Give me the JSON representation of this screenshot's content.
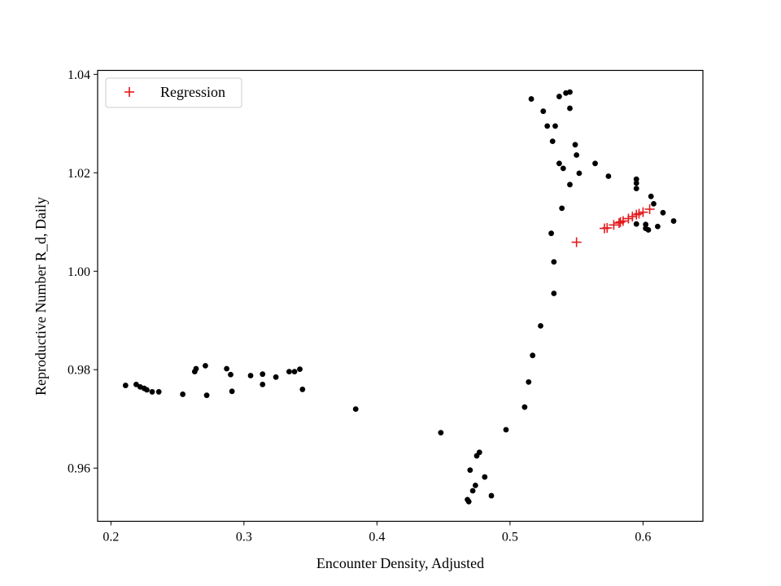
{
  "chart_data": {
    "type": "scatter",
    "title": "",
    "xlabel": "Encounter Density, Adjusted",
    "ylabel": "Reproductive Number R_d, Daily",
    "xlim": [
      0.19,
      0.645
    ],
    "ylim": [
      0.9492,
      1.0408
    ],
    "x_ticks": [
      0.2,
      0.3,
      0.4,
      0.5,
      0.6
    ],
    "x_tick_labels": [
      "0.2",
      "0.3",
      "0.4",
      "0.5",
      "0.6"
    ],
    "y_ticks": [
      0.96,
      0.98,
      1.0,
      1.02,
      1.04
    ],
    "y_tick_labels": [
      "0.96",
      "0.98",
      "1.00",
      "1.02",
      "1.04"
    ],
    "grid": false,
    "legend": {
      "placement": "top-left",
      "entries": [
        "Regression"
      ]
    },
    "series": [
      {
        "marker": "dot",
        "color": "#000000",
        "points": [
          [
            0.211,
            0.9768
          ],
          [
            0.219,
            0.977
          ],
          [
            0.222,
            0.9765
          ],
          [
            0.225,
            0.9762
          ],
          [
            0.227,
            0.9759
          ],
          [
            0.231,
            0.9755
          ],
          [
            0.236,
            0.9755
          ],
          [
            0.254,
            0.975
          ],
          [
            0.263,
            0.9796
          ],
          [
            0.264,
            0.9802
          ],
          [
            0.271,
            0.9808
          ],
          [
            0.272,
            0.9748
          ],
          [
            0.287,
            0.9802
          ],
          [
            0.29,
            0.979
          ],
          [
            0.291,
            0.9756
          ],
          [
            0.305,
            0.9788
          ],
          [
            0.314,
            0.9791
          ],
          [
            0.314,
            0.977
          ],
          [
            0.324,
            0.9785
          ],
          [
            0.334,
            0.9796
          ],
          [
            0.338,
            0.9796
          ],
          [
            0.342,
            0.9801
          ],
          [
            0.344,
            0.976
          ],
          [
            0.384,
            0.972
          ],
          [
            0.448,
            0.9672
          ],
          [
            0.468,
            0.9536
          ],
          [
            0.469,
            0.9532
          ],
          [
            0.47,
            0.9596
          ],
          [
            0.472,
            0.9554
          ],
          [
            0.474,
            0.9565
          ],
          [
            0.475,
            0.9625
          ],
          [
            0.477,
            0.9632
          ],
          [
            0.481,
            0.9582
          ],
          [
            0.486,
            0.9544
          ],
          [
            0.497,
            0.9678
          ],
          [
            0.511,
            0.9724
          ],
          [
            0.514,
            0.9775
          ],
          [
            0.517,
            0.9829
          ],
          [
            0.523,
            0.9889
          ],
          [
            0.531,
            1.0077
          ],
          [
            0.533,
            1.0019
          ],
          [
            0.533,
            0.9955
          ],
          [
            0.516,
            1.035
          ],
          [
            0.525,
            1.0325
          ],
          [
            0.528,
            1.0295
          ],
          [
            0.532,
            1.0264
          ],
          [
            0.534,
            1.0295
          ],
          [
            0.537,
            1.0355
          ],
          [
            0.537,
            1.0219
          ],
          [
            0.539,
            1.0128
          ],
          [
            0.54,
            1.0209
          ],
          [
            0.542,
            1.0362
          ],
          [
            0.545,
            1.0364
          ],
          [
            0.545,
            1.0331
          ],
          [
            0.545,
            1.0176
          ],
          [
            0.549,
            1.0257
          ],
          [
            0.55,
            1.0236
          ],
          [
            0.552,
            1.0199
          ],
          [
            0.564,
            1.0219
          ],
          [
            0.574,
            1.0193
          ],
          [
            0.595,
            1.0187
          ],
          [
            0.595,
            1.0179
          ],
          [
            0.595,
            1.0168
          ],
          [
            0.595,
            1.0096
          ],
          [
            0.602,
            1.0087
          ],
          [
            0.602,
            1.0095
          ],
          [
            0.604,
            1.0084
          ],
          [
            0.606,
            1.0152
          ],
          [
            0.608,
            1.0137
          ],
          [
            0.611,
            1.0091
          ],
          [
            0.615,
            1.0119
          ],
          [
            0.623,
            1.0102
          ]
        ]
      },
      {
        "name": "Regression",
        "marker": "plus",
        "color": "#e31a1c",
        "points": [
          [
            0.55,
            1.0059
          ],
          [
            0.571,
            1.0087
          ],
          [
            0.573,
            1.0088
          ],
          [
            0.578,
            1.0094
          ],
          [
            0.582,
            1.0098
          ],
          [
            0.583,
            1.01
          ],
          [
            0.585,
            1.0102
          ],
          [
            0.589,
            1.0107
          ],
          [
            0.592,
            1.0111
          ],
          [
            0.595,
            1.0115
          ],
          [
            0.597,
            1.0117
          ],
          [
            0.6,
            1.012
          ],
          [
            0.605,
            1.0126
          ]
        ]
      }
    ]
  }
}
